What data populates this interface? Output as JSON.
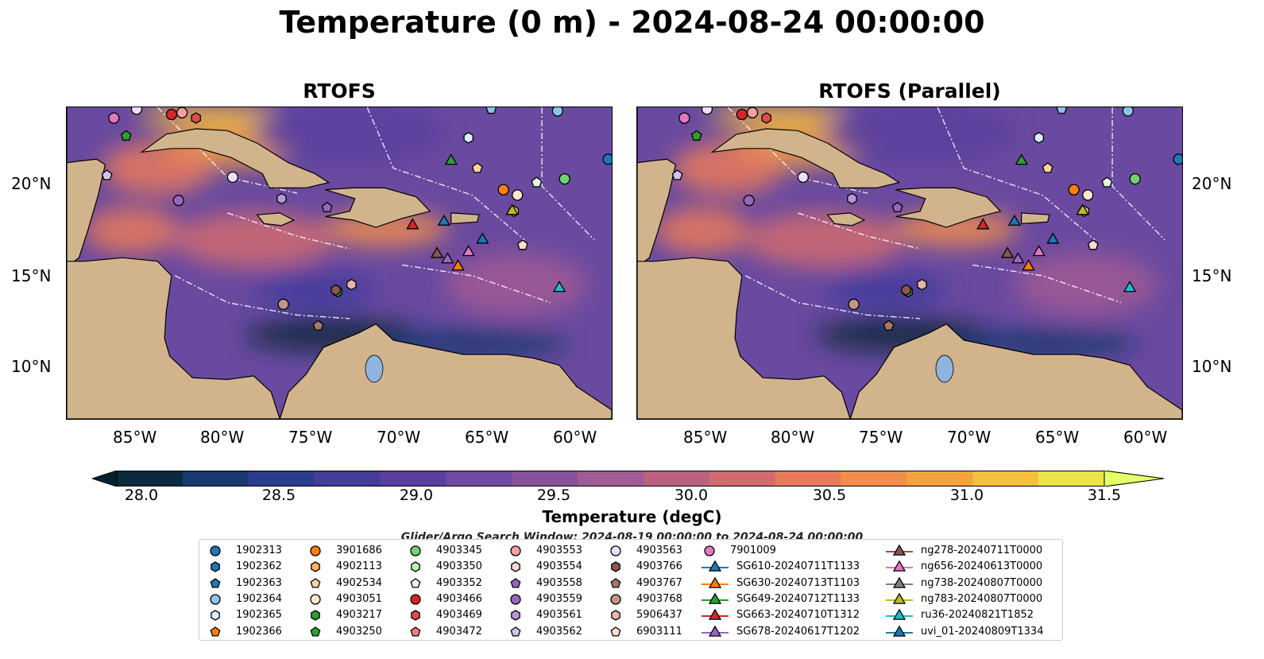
{
  "suptitle": "Temperature (0 m) - 2024-08-24 00:00:00",
  "panels": [
    {
      "title": "RTOFS"
    },
    {
      "title": "RTOFS (Parallel)"
    }
  ],
  "lat_ticks": [
    "20°N",
    "15°N",
    "10°N"
  ],
  "lon_ticks": [
    "85°W",
    "80°W",
    "75°W",
    "70°W",
    "65°W",
    "60°W"
  ],
  "colorbar": {
    "label": "Temperature (degC)",
    "ticks": [
      "28.0",
      "28.5",
      "29.0",
      "29.5",
      "30.0",
      "30.5",
      "31.0",
      "31.5"
    ],
    "colors": [
      "#0b2a3d",
      "#183a6e",
      "#2c3d8e",
      "#433d9c",
      "#5a3f9e",
      "#6f4aa0",
      "#87519c",
      "#a05a94",
      "#b9617e",
      "#d26b70",
      "#e87a5c",
      "#f38e4a",
      "#f5a33d",
      "#f4c13f",
      "#e9e54a"
    ],
    "extend_low_color": "#08202e",
    "extend_high_color": "#e9ff6a"
  },
  "search_window": "Glider/Argo Search Window: 2024-08-19 00:00:00 to 2024-08-24 00:00:00",
  "legend": {
    "columns": [
      [
        {
          "label": "1902313",
          "marker": "circle",
          "color": "#1f77b4"
        },
        {
          "label": "1902362",
          "marker": "hexagon",
          "color": "#1f77b4"
        },
        {
          "label": "1902363",
          "marker": "pentagon",
          "color": "#1f77b4"
        },
        {
          "label": "1902364",
          "marker": "circle",
          "color": "#8ec3ea"
        },
        {
          "label": "1902365",
          "marker": "hexagon",
          "color": "#dbeefb"
        },
        {
          "label": "1902366",
          "marker": "pentagon",
          "color": "#ff7f0e"
        }
      ],
      [
        {
          "label": "3901686",
          "marker": "circle",
          "color": "#ff7f0e"
        },
        {
          "label": "4902113",
          "marker": "hexagon",
          "color": "#ffae5e"
        },
        {
          "label": "4902534",
          "marker": "pentagon",
          "color": "#ffd39e"
        },
        {
          "label": "4903051",
          "marker": "circle",
          "color": "#fde6cf"
        },
        {
          "label": "4903217",
          "marker": "hexagon",
          "color": "#2ca02c"
        },
        {
          "label": "4903250",
          "marker": "pentagon",
          "color": "#2ca02c"
        }
      ],
      [
        {
          "label": "4903345",
          "marker": "circle",
          "color": "#6fd36f"
        },
        {
          "label": "4903350",
          "marker": "hexagon",
          "color": "#b8f0b0"
        },
        {
          "label": "4903352",
          "marker": "pentagon",
          "color": "#e6fbe0"
        },
        {
          "label": "4903466",
          "marker": "circle",
          "color": "#d62728"
        },
        {
          "label": "4903469",
          "marker": "hexagon",
          "color": "#e04b4b"
        },
        {
          "label": "4903472",
          "marker": "pentagon",
          "color": "#f07c7c"
        }
      ],
      [
        {
          "label": "4903553",
          "marker": "circle",
          "color": "#f5a0a0"
        },
        {
          "label": "4903554",
          "marker": "hexagon",
          "color": "#fcd3d3"
        },
        {
          "label": "4903558",
          "marker": "pentagon",
          "color": "#9467bd"
        },
        {
          "label": "4903559",
          "marker": "circle",
          "color": "#9467bd"
        },
        {
          "label": "4903561",
          "marker": "hexagon",
          "color": "#b798d8"
        },
        {
          "label": "4903562",
          "marker": "pentagon",
          "color": "#d6c2ee"
        }
      ],
      [
        {
          "label": "4903563",
          "marker": "circle",
          "color": "#eee0fa"
        },
        {
          "label": "4903766",
          "marker": "hexagon",
          "color": "#8c564b"
        },
        {
          "label": "4903767",
          "marker": "pentagon",
          "color": "#a8756a"
        },
        {
          "label": "4903768",
          "marker": "circle",
          "color": "#c49489"
        },
        {
          "label": "5906437",
          "marker": "hexagon",
          "color": "#e8b5a5"
        },
        {
          "label": "6903111",
          "marker": "pentagon",
          "color": "#fbdcd2"
        }
      ],
      [
        {
          "label": "7901009",
          "marker": "circle",
          "color": "#e377c2"
        },
        {
          "label": "SG610-20240711T1133",
          "marker": "triangle",
          "color": "#1f77b4"
        },
        {
          "label": "SG630-20240713T1103",
          "marker": "triangle",
          "color": "#ff7f0e"
        },
        {
          "label": "SG649-20240712T1133",
          "marker": "triangle",
          "color": "#2ca02c"
        },
        {
          "label": "SG663-20240710T1312",
          "marker": "triangle",
          "color": "#d62728"
        },
        {
          "label": "SG678-20240617T1202",
          "marker": "triangle",
          "color": "#9467bd"
        }
      ],
      [
        {
          "label": "ng278-20240711T0000",
          "marker": "triangle",
          "color": "#8c564b"
        },
        {
          "label": "ng656-20240613T0000",
          "marker": "triangle",
          "color": "#e377c2"
        },
        {
          "label": "ng738-20240807T0000",
          "marker": "triangle",
          "color": "#7f7f7f"
        },
        {
          "label": "ng783-20240807T0000",
          "marker": "triangle",
          "color": "#bcbd22"
        },
        {
          "label": "ru36-20240821T1852",
          "marker": "triangle",
          "color": "#17becf"
        },
        {
          "label": "uvi_01-20240809T1334",
          "marker": "triangle",
          "color": "#1f77b4"
        }
      ]
    ]
  },
  "map_markers": [
    {
      "lon": -86.5,
      "lat": 23.8,
      "marker": "circle",
      "color": "#e377c2"
    },
    {
      "lon": -85.8,
      "lat": 22.8,
      "marker": "pentagon",
      "color": "#2ca02c"
    },
    {
      "lon": -85.2,
      "lat": 24.3,
      "marker": "circle",
      "color": "#eee0fa"
    },
    {
      "lon": -83.2,
      "lat": 24.0,
      "marker": "circle",
      "color": "#d62728"
    },
    {
      "lon": -82.6,
      "lat": 24.1,
      "marker": "circle",
      "color": "#f5a0a0"
    },
    {
      "lon": -81.8,
      "lat": 23.8,
      "marker": "hexagon",
      "color": "#e04b4b"
    },
    {
      "lon": -86.9,
      "lat": 20.6,
      "marker": "pentagon",
      "color": "#d6c2ee"
    },
    {
      "lon": -82.8,
      "lat": 19.2,
      "marker": "circle",
      "color": "#9467bd"
    },
    {
      "lon": -79.7,
      "lat": 20.5,
      "marker": "circle",
      "color": "#eee0fa"
    },
    {
      "lon": -76.9,
      "lat": 19.3,
      "marker": "hexagon",
      "color": "#b798d8"
    },
    {
      "lon": -74.3,
      "lat": 18.8,
      "marker": "pentagon",
      "color": "#9467bd"
    },
    {
      "lon": -73.7,
      "lat": 14.1,
      "marker": "hexagon",
      "color": "#2ca02c"
    },
    {
      "lon": -73.8,
      "lat": 14.2,
      "marker": "hexagon",
      "color": "#8c564b"
    },
    {
      "lon": -72.9,
      "lat": 14.5,
      "marker": "hexagon",
      "color": "#e8b5a5"
    },
    {
      "lon": -76.8,
      "lat": 13.4,
      "marker": "circle",
      "color": "#c49489"
    },
    {
      "lon": -74.8,
      "lat": 12.2,
      "marker": "pentagon",
      "color": "#a8756a"
    },
    {
      "lon": -66.2,
      "lat": 22.7,
      "marker": "hexagon",
      "color": "#dbeefb"
    },
    {
      "lon": -64.9,
      "lat": 24.3,
      "marker": "pentagon",
      "color": "#8ec3ea"
    },
    {
      "lon": -61.1,
      "lat": 24.2,
      "marker": "circle",
      "color": "#8ec3ea"
    },
    {
      "lon": -58.2,
      "lat": 21.5,
      "marker": "circle",
      "color": "#1f77b4"
    },
    {
      "lon": -65.7,
      "lat": 21.0,
      "marker": "pentagon",
      "color": "#ffd39e"
    },
    {
      "lon": -64.2,
      "lat": 19.8,
      "marker": "circle",
      "color": "#ff7f0e"
    },
    {
      "lon": -63.4,
      "lat": 19.5,
      "marker": "circle",
      "color": "#fde6cf"
    },
    {
      "lon": -62.3,
      "lat": 20.2,
      "marker": "pentagon",
      "color": "#e6fbe0"
    },
    {
      "lon": -60.7,
      "lat": 20.4,
      "marker": "circle",
      "color": "#6fd36f"
    },
    {
      "lon": -63.6,
      "lat": 18.6,
      "marker": "hexagon",
      "color": "#ffae5e"
    },
    {
      "lon": -63.1,
      "lat": 16.7,
      "marker": "pentagon",
      "color": "#fbdcd2"
    },
    {
      "lon": -67.2,
      "lat": 21.4,
      "marker": "triangle",
      "color": "#2ca02c"
    },
    {
      "lon": -69.4,
      "lat": 17.8,
      "marker": "triangle",
      "color": "#d62728"
    },
    {
      "lon": -67.6,
      "lat": 18.0,
      "marker": "triangle",
      "color": "#1f77b4"
    },
    {
      "lon": -63.7,
      "lat": 18.6,
      "marker": "triangle",
      "color": "#bcbd22"
    },
    {
      "lon": -65.4,
      "lat": 17.0,
      "marker": "triangle",
      "color": "#1f77b4"
    },
    {
      "lon": -66.2,
      "lat": 16.3,
      "marker": "triangle",
      "color": "#e377c2"
    },
    {
      "lon": -68.0,
      "lat": 16.2,
      "marker": "triangle",
      "color": "#8c564b"
    },
    {
      "lon": -67.4,
      "lat": 15.9,
      "marker": "triangle",
      "color": "#9467bd"
    },
    {
      "lon": -66.8,
      "lat": 15.5,
      "marker": "triangle",
      "color": "#ff7f0e"
    },
    {
      "lon": -61.0,
      "lat": 14.3,
      "marker": "triangle",
      "color": "#17becf"
    }
  ]
}
